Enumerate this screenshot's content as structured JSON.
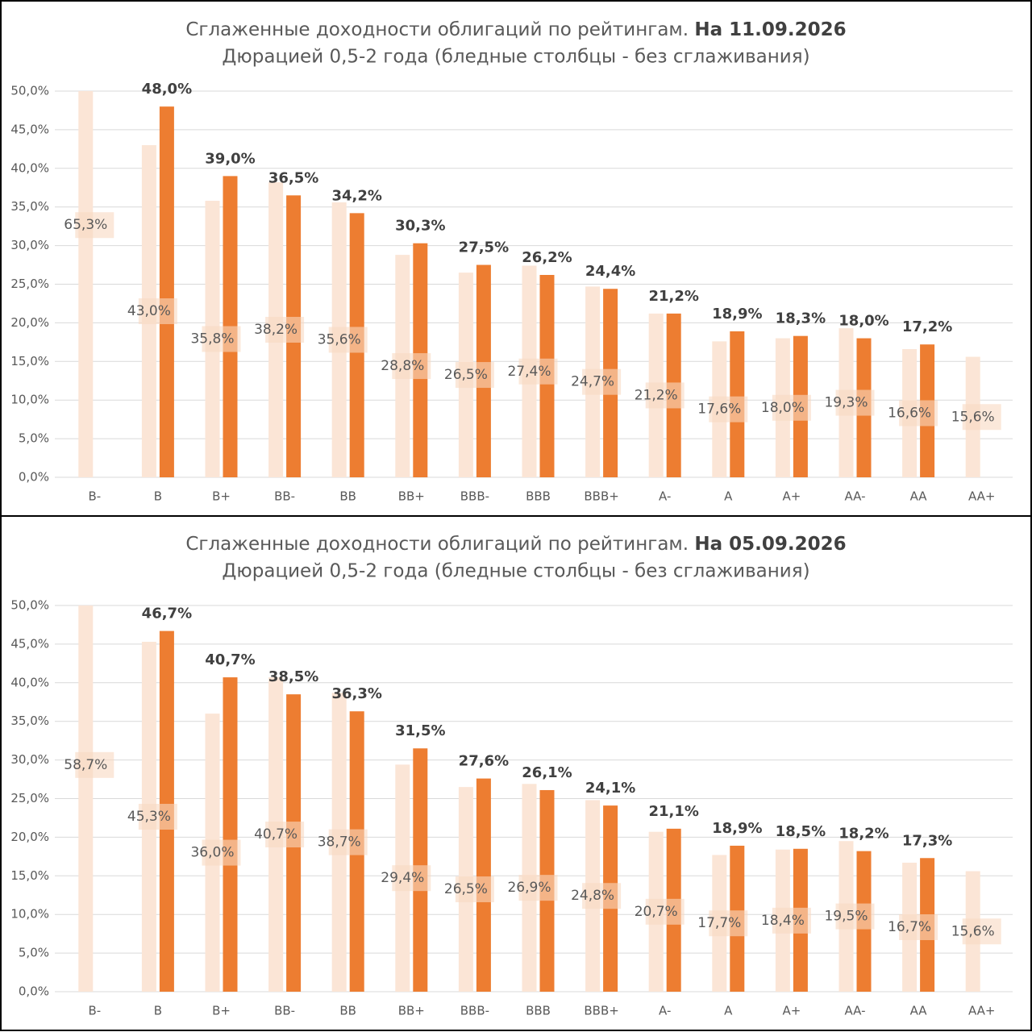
{
  "chart_data": [
    {
      "type": "bar",
      "title": "Сглаженные доходности облигаций по рейтингам.",
      "title_date": "На 11.09.2026",
      "subtitle": "Дюрацией 0,5-2 года (бледные столбцы - без сглаживания)",
      "categories": [
        "B-",
        "B",
        "B+",
        "BB-",
        "BB",
        "BB+",
        "BBB-",
        "BBB",
        "BBB+",
        "A-",
        "A",
        "A+",
        "AA-",
        "AA",
        "AA+"
      ],
      "series": [
        {
          "color": "#fbe5d6",
          "values": [
            65.3,
            43.0,
            35.8,
            38.2,
            35.6,
            28.8,
            26.5,
            27.4,
            24.7,
            21.2,
            17.6,
            18.0,
            19.3,
            16.6,
            15.6
          ],
          "value_labels": [
            "65,3%",
            "43,0%",
            "35,8%",
            "38,2%",
            "35,6%",
            "28,8%",
            "26,5%",
            "27,4%",
            "24,7%",
            "21,2%",
            "17,6%",
            "18,0%",
            "19,3%",
            "16,6%",
            "15,6%"
          ]
        },
        {
          "color": "#ed7d31",
          "values": [
            null,
            48.0,
            39.0,
            36.5,
            34.2,
            30.3,
            27.5,
            26.2,
            24.4,
            21.2,
            18.9,
            18.3,
            18.0,
            17.2,
            null
          ],
          "value_labels": [
            null,
            "48,0%",
            "39,0%",
            "36,5%",
            "34,2%",
            "30,3%",
            "27,5%",
            "26,2%",
            "24,4%",
            "21,2%",
            "18,9%",
            "18,3%",
            "18,0%",
            "17,2%",
            null
          ]
        }
      ],
      "ylim": [
        0,
        50
      ],
      "yticks": [
        {
          "value": 0,
          "label": "0,0%"
        },
        {
          "value": 5,
          "label": "5,0%"
        },
        {
          "value": 10,
          "label": "10,0%"
        },
        {
          "value": 15,
          "label": "15,0%"
        },
        {
          "value": 20,
          "label": "20,0%"
        },
        {
          "value": 25,
          "label": "25,0%"
        },
        {
          "value": 30,
          "label": "30,0%"
        },
        {
          "value": 35,
          "label": "35,0%"
        },
        {
          "value": 40,
          "label": "40,0%"
        },
        {
          "value": 45,
          "label": "45,0%"
        },
        {
          "value": 50,
          "label": "50,0%"
        }
      ],
      "grid": true
    },
    {
      "type": "bar",
      "title": "Сглаженные доходности облигаций по рейтингам.",
      "title_date": "На 05.09.2026",
      "subtitle": "Дюрацией 0,5-2 года (бледные столбцы - без сглаживания)",
      "categories": [
        "B-",
        "B",
        "B+",
        "BB-",
        "BB",
        "BB+",
        "BBB-",
        "BBB",
        "BBB+",
        "A-",
        "A",
        "A+",
        "AA-",
        "AA",
        "AA+"
      ],
      "series": [
        {
          "color": "#fbe5d6",
          "values": [
            58.7,
            45.3,
            36.0,
            40.7,
            38.7,
            29.4,
            26.5,
            26.9,
            24.8,
            20.7,
            17.7,
            18.4,
            19.5,
            16.7,
            15.6
          ],
          "value_labels": [
            "58,7%",
            "45,3%",
            "36,0%",
            "40,7%",
            "38,7%",
            "29,4%",
            "26,5%",
            "26,9%",
            "24,8%",
            "20,7%",
            "17,7%",
            "18,4%",
            "19,5%",
            "16,7%",
            "15,6%"
          ]
        },
        {
          "color": "#ed7d31",
          "values": [
            null,
            46.7,
            40.7,
            38.5,
            36.3,
            31.5,
            27.6,
            26.1,
            24.1,
            21.1,
            18.9,
            18.5,
            18.2,
            17.3,
            null
          ],
          "value_labels": [
            null,
            "46,7%",
            "40,7%",
            "38,5%",
            "36,3%",
            "31,5%",
            "27,6%",
            "26,1%",
            "24,1%",
            "21,1%",
            "18,9%",
            "18,5%",
            "18,2%",
            "17,3%",
            null
          ]
        }
      ],
      "ylim": [
        0,
        50
      ],
      "yticks": [
        {
          "value": 0,
          "label": "0,0%"
        },
        {
          "value": 5,
          "label": "5,0%"
        },
        {
          "value": 10,
          "label": "10,0%"
        },
        {
          "value": 15,
          "label": "15,0%"
        },
        {
          "value": 20,
          "label": "20,0%"
        },
        {
          "value": 25,
          "label": "25,0%"
        },
        {
          "value": 30,
          "label": "30,0%"
        },
        {
          "value": 35,
          "label": "35,0%"
        },
        {
          "value": 40,
          "label": "40,0%"
        },
        {
          "value": 45,
          "label": "45,0%"
        },
        {
          "value": 50,
          "label": "50,0%"
        }
      ],
      "grid": true
    }
  ]
}
